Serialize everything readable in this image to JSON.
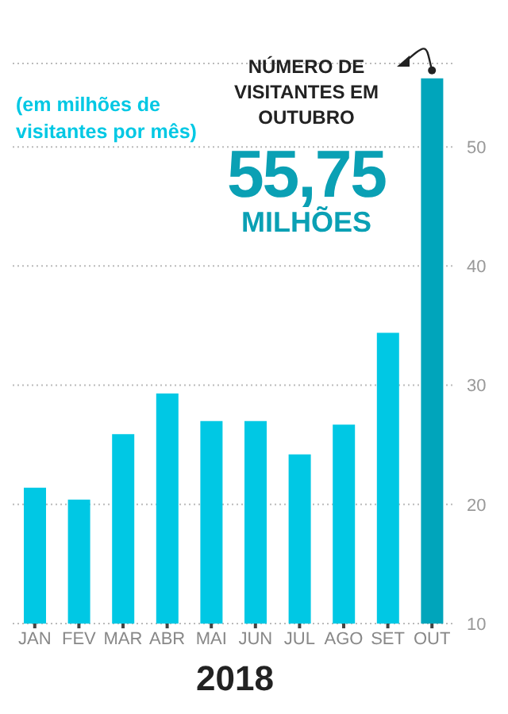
{
  "chart_data": {
    "type": "bar",
    "xlabel": "2018",
    "categories": [
      "JAN",
      "FEV",
      "MAR",
      "ABR",
      "MAI",
      "JUN",
      "JUL",
      "AGO",
      "SET",
      "OUT"
    ],
    "values": [
      21.4,
      20.4,
      25.9,
      29.3,
      27,
      27,
      24.2,
      26.7,
      34.4,
      55.75
    ],
    "colors": [
      "#00c8e4",
      "#00c8e4",
      "#00c8e4",
      "#00c8e4",
      "#00c8e4",
      "#00c8e4",
      "#00c8e4",
      "#00c8e4",
      "#00c8e4",
      "#00a5bb"
    ],
    "ylim": [
      10,
      57
    ],
    "yticks": [
      10,
      20,
      30,
      40,
      50
    ],
    "grid": "y",
    "annotations": [
      "(em milhões de visitantes por mês)",
      {
        "text": "NÚMERO DE VISITANTES EM OUTUBRO",
        "x": "OUT",
        "y": 55.75
      },
      "55,75",
      "MILHÕES"
    ]
  }
}
